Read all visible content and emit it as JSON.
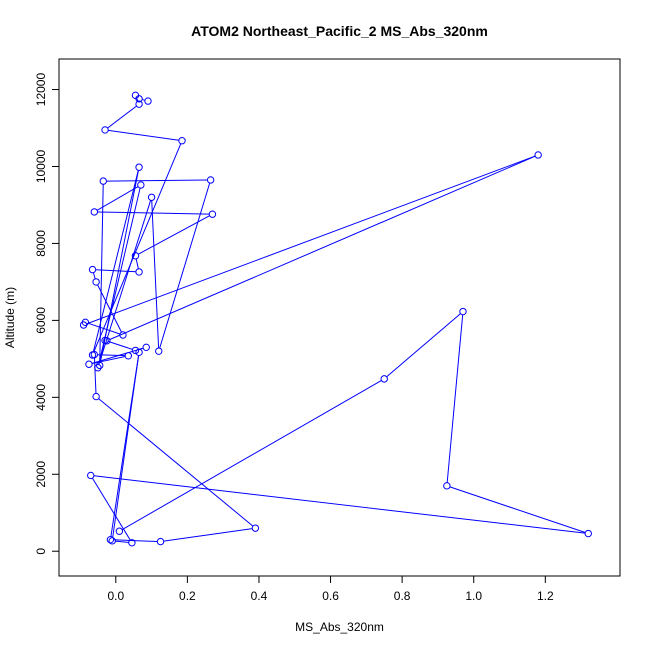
{
  "chart_data": {
    "type": "line",
    "title": "ATOM2 Northeast_Pacific_2 MS_Abs_320nm",
    "xlabel": "MS_Abs_320nm",
    "ylabel": "Altitude (m)",
    "xlim": [
      -0.1,
      1.35
    ],
    "ylim": [
      -150,
      12300
    ],
    "xticks": [
      0.0,
      0.2,
      0.4,
      0.6,
      0.8,
      1.0,
      1.2
    ],
    "xtick_labels": [
      "0.0",
      "0.2",
      "0.4",
      "0.6",
      "0.8",
      "1.0",
      "1.2"
    ],
    "yticks": [
      0,
      2000,
      4000,
      6000,
      8000,
      10000,
      12000
    ],
    "ytick_labels": [
      "0",
      "2000",
      "4000",
      "6000",
      "8000",
      "10000",
      "12000"
    ],
    "grid": false,
    "series_color": "#0000ff",
    "markers": "open-circle",
    "points": [
      {
        "x": 0.09,
        "y": 11700
      },
      {
        "x": 0.065,
        "y": 11760
      },
      {
        "x": 0.055,
        "y": 11850
      },
      {
        "x": 0.065,
        "y": 11620
      },
      {
        "x": -0.03,
        "y": 10950
      },
      {
        "x": 0.185,
        "y": 10670
      },
      {
        "x": -0.065,
        "y": 5100
      },
      {
        "x": 0.065,
        "y": 9980
      },
      {
        "x": -0.045,
        "y": 4830
      },
      {
        "x": -0.035,
        "y": 9620
      },
      {
        "x": 0.265,
        "y": 9650
      },
      {
        "x": 0.12,
        "y": 5200
      },
      {
        "x": 0.1,
        "y": 9200
      },
      {
        "x": -0.05,
        "y": 4770
      },
      {
        "x": 0.07,
        "y": 9520
      },
      {
        "x": -0.06,
        "y": 8820
      },
      {
        "x": 0.27,
        "y": 8760
      },
      {
        "x": 0.055,
        "y": 7680
      },
      {
        "x": 0.065,
        "y": 7260
      },
      {
        "x": -0.065,
        "y": 7320
      },
      {
        "x": -0.055,
        "y": 7000
      },
      {
        "x": 0.02,
        "y": 5620
      },
      {
        "x": -0.085,
        "y": 5950
      },
      {
        "x": -0.09,
        "y": 5880
      },
      {
        "x": 1.18,
        "y": 10300
      },
      {
        "x": -0.025,
        "y": 5470
      },
      {
        "x": -0.03,
        "y": 5480
      },
      {
        "x": 0.055,
        "y": 5220
      },
      {
        "x": 0.085,
        "y": 5300
      },
      {
        "x": -0.075,
        "y": 4860
      },
      {
        "x": 0.035,
        "y": 5080
      },
      {
        "x": -0.06,
        "y": 5110
      },
      {
        "x": -0.055,
        "y": 4020
      },
      {
        "x": 0.39,
        "y": 600
      },
      {
        "x": 0.125,
        "y": 250
      },
      {
        "x": -0.015,
        "y": 300
      },
      {
        "x": 0.065,
        "y": 5170
      },
      {
        "x": -0.01,
        "y": 270
      },
      {
        "x": 0.045,
        "y": 220
      },
      {
        "x": -0.07,
        "y": 1970
      },
      {
        "x": 1.32,
        "y": 460
      },
      {
        "x": 0.925,
        "y": 1700
      },
      {
        "x": 0.97,
        "y": 6230
      },
      {
        "x": 0.75,
        "y": 4480
      },
      {
        "x": 0.01,
        "y": 520
      }
    ]
  }
}
